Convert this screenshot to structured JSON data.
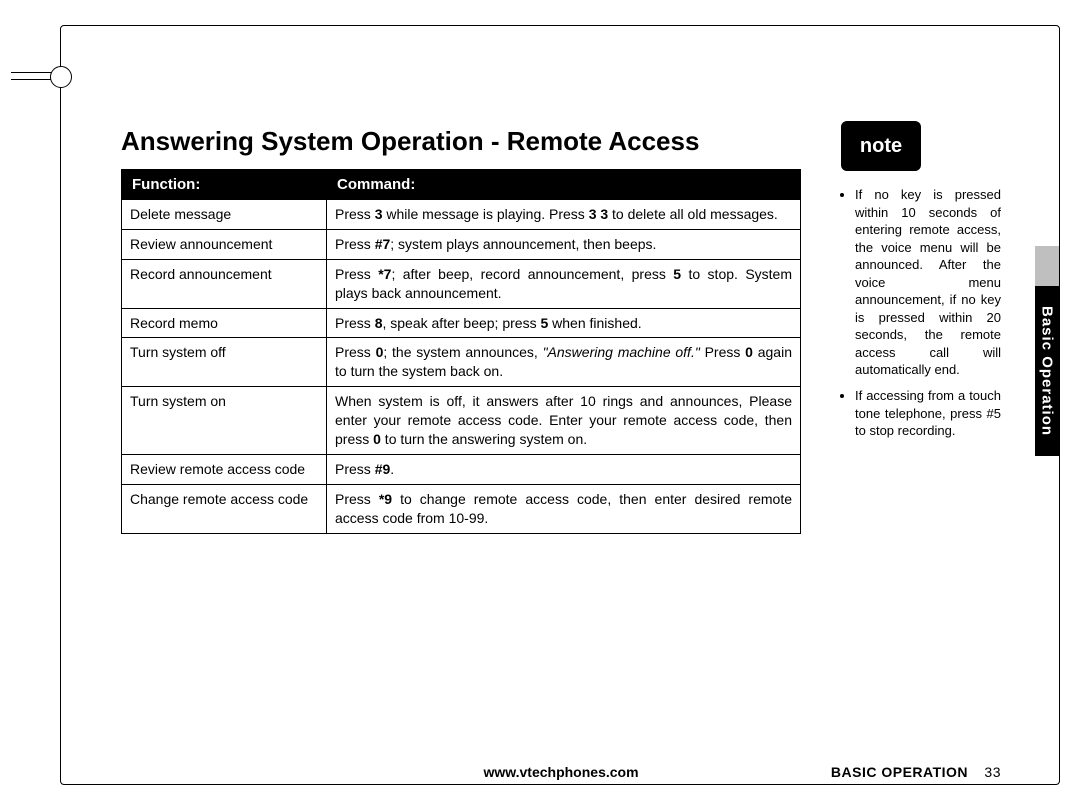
{
  "title": "Answering System Operation - Remote Access",
  "table": {
    "headers": {
      "func": "Function:",
      "cmd": "Command:"
    },
    "rows": [
      {
        "func": "Delete message",
        "cmd": "Press <b>3</b> while message is playing. Press <b>3 3</b> to delete all old messages."
      },
      {
        "func": "Review announcement",
        "cmd": "Press <b>#7</b>; system plays announcement, then beeps."
      },
      {
        "func": "Record announcement",
        "cmd": "Press <b>*7</b>; after beep, record announcement, press <b>5</b> to stop. System plays back announcement."
      },
      {
        "func": "Record memo",
        "cmd": "Press <b>8</b>, speak after beep; press <b>5</b> when finished."
      },
      {
        "func": "Turn system off",
        "cmd": "Press <b>0</b>; the system announces, <i>\"Answering machine off.\"</i> Press <b>0</b> again to turn the system back on."
      },
      {
        "func": "Turn system on",
        "cmd": "When system is off, it answers after 10 rings and announces, Please enter your remote access code. Enter your remote access code, then press <b>0</b> to turn the answering system on."
      },
      {
        "func": "Review remote access code",
        "cmd": "Press <b>#9</b>."
      },
      {
        "func": "Change remote access code",
        "cmd": "Press <b>*9</b> to change remote access code, then enter desired remote access code from 10-99."
      }
    ]
  },
  "note": {
    "label": "note",
    "items": [
      "If no key is pressed within 10 seconds of entering remote access, the voice menu will be announced. After the voice menu announcement, if no key is pressed within 20 seconds, the remote access call will automatically end.",
      "If accessing from a touch tone telephone, press #5 to stop recording."
    ]
  },
  "sideTab": "Basic Operation",
  "footer": {
    "url": "www.vtechphones.com",
    "section": "BASIC OPERATION",
    "page": "33"
  }
}
